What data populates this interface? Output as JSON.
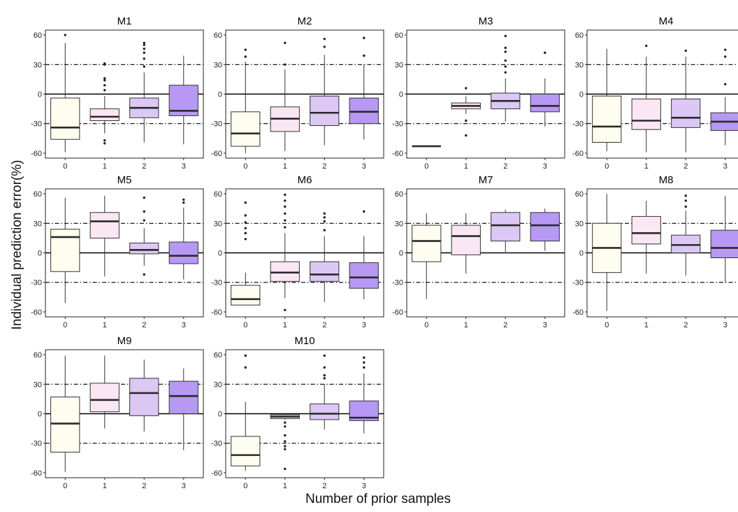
{
  "figure": {
    "ylabel": "Individual prediction error(%)",
    "xlabel": "Number of prior samples"
  },
  "chart_data": {
    "type": "box",
    "x_categories": [
      "0",
      "1",
      "2",
      "3"
    ],
    "y_ticks": [
      60,
      30,
      0,
      -30,
      -60
    ],
    "ylim": [
      -65,
      65
    ],
    "reference_lines": {
      "solid": [
        0
      ],
      "dashdot": [
        30,
        -30
      ]
    },
    "box_colors": [
      "#fdfdf0",
      "#fbe6f3",
      "#dcc7f5",
      "#b798f5"
    ],
    "panels": [
      {
        "title": "M1",
        "boxes": [
          {
            "x": "0",
            "whisker_low": -59,
            "q1": -46,
            "median": -34,
            "q3": -4,
            "whisker_high": 52,
            "outliers": [
              60
            ]
          },
          {
            "x": "1",
            "whisker_low": -40,
            "q1": -27,
            "median": -23,
            "q3": -15,
            "whisker_high": -2,
            "outliers": [
              4,
              9,
              14,
              16,
              30,
              31,
              -47,
              -50
            ]
          },
          {
            "x": "2",
            "whisker_low": -49,
            "q1": -24,
            "median": -14,
            "q3": -4,
            "whisker_high": 22,
            "outliers": [
              28,
              36,
              42,
              46,
              50,
              52
            ]
          },
          {
            "x": "3",
            "whisker_low": -51,
            "q1": -22,
            "median": -17,
            "q3": 9,
            "whisker_high": 39,
            "outliers": []
          }
        ]
      },
      {
        "title": "M2",
        "boxes": [
          {
            "x": "0",
            "whisker_low": -60,
            "q1": -53,
            "median": -40,
            "q3": -18,
            "whisker_high": 33,
            "outliers": [
              38,
              45
            ]
          },
          {
            "x": "1",
            "whisker_low": -58,
            "q1": -38,
            "median": -25,
            "q3": -13,
            "whisker_high": 25,
            "outliers": [
              30,
              52
            ]
          },
          {
            "x": "2",
            "whisker_low": -52,
            "q1": -32,
            "median": -19,
            "q3": -2,
            "whisker_high": 40,
            "outliers": [
              48,
              56
            ]
          },
          {
            "x": "3",
            "whisker_low": -46,
            "q1": -30,
            "median": -18,
            "q3": -4,
            "whisker_high": 30,
            "outliers": [
              39,
              57
            ]
          }
        ]
      },
      {
        "title": "M3",
        "boxes": [
          {
            "x": "0",
            "whisker_low": -53,
            "q1": -53,
            "median": -53,
            "q3": -53,
            "whisker_high": -53,
            "outliers": []
          },
          {
            "x": "1",
            "whisker_low": -20,
            "q1": -15,
            "median": -12,
            "q3": -9,
            "whisker_high": -2,
            "outliers": [
              6,
              -27,
              -42
            ]
          },
          {
            "x": "2",
            "whisker_low": -28,
            "q1": -15,
            "median": -7,
            "q3": 1,
            "whisker_high": 16,
            "outliers": [
              22,
              28,
              34,
              43,
              47,
              59
            ]
          },
          {
            "x": "3",
            "whisker_low": -33,
            "q1": -18,
            "median": -12,
            "q3": 0,
            "whisker_high": 16,
            "outliers": [
              42
            ]
          }
        ]
      },
      {
        "title": "M4",
        "boxes": [
          {
            "x": "0",
            "whisker_low": -58,
            "q1": -49,
            "median": -33,
            "q3": -2,
            "whisker_high": 46,
            "outliers": []
          },
          {
            "x": "1",
            "whisker_low": -59,
            "q1": -36,
            "median": -27,
            "q3": -5,
            "whisker_high": 38,
            "outliers": [
              49
            ]
          },
          {
            "x": "2",
            "whisker_low": -59,
            "q1": -34,
            "median": -24,
            "q3": -5,
            "whisker_high": 38,
            "outliers": [
              44
            ]
          },
          {
            "x": "3",
            "whisker_low": -52,
            "q1": -37,
            "median": -28,
            "q3": -19,
            "whisker_high": -3,
            "outliers": [
              10,
              38,
              45
            ]
          }
        ]
      },
      {
        "title": "M5",
        "boxes": [
          {
            "x": "0",
            "whisker_low": -51,
            "q1": -19,
            "median": 16,
            "q3": 24,
            "whisker_high": 56,
            "outliers": []
          },
          {
            "x": "1",
            "whisker_low": -24,
            "q1": 15,
            "median": 32,
            "q3": 41,
            "whisker_high": 58,
            "outliers": []
          },
          {
            "x": "2",
            "whisker_low": -13,
            "q1": -1,
            "median": 3,
            "q3": 10,
            "whisker_high": 25,
            "outliers": [
              33,
              42,
              56,
              -22
            ]
          },
          {
            "x": "3",
            "whisker_low": -27,
            "q1": -11,
            "median": -3,
            "q3": 11,
            "whisker_high": 46,
            "outliers": [
              51,
              54
            ]
          }
        ]
      },
      {
        "title": "M6",
        "boxes": [
          {
            "x": "0",
            "whisker_low": -53,
            "q1": -53,
            "median": -47,
            "q3": -33,
            "whisker_high": -20,
            "outliers": [
              14,
              20,
              25,
              31,
              38,
              51
            ]
          },
          {
            "x": "1",
            "whisker_low": -46,
            "q1": -29,
            "median": -20,
            "q3": -9,
            "whisker_high": 20,
            "outliers": [
              26,
              33,
              40,
              47,
              53,
              59,
              -58
            ]
          },
          {
            "x": "2",
            "whisker_low": -50,
            "q1": -29,
            "median": -22,
            "q3": -9,
            "whisker_high": 17,
            "outliers": [
              23,
              32,
              36,
              40
            ]
          },
          {
            "x": "3",
            "whisker_low": -47,
            "q1": -36,
            "median": -25,
            "q3": -10,
            "whisker_high": 17,
            "outliers": [
              42
            ]
          }
        ]
      },
      {
        "title": "M7",
        "boxes": [
          {
            "x": "0",
            "whisker_low": -47,
            "q1": -9,
            "median": 12,
            "q3": 28,
            "whisker_high": 40,
            "outliers": []
          },
          {
            "x": "1",
            "whisker_low": -21,
            "q1": -2,
            "median": 17,
            "q3": 28,
            "whisker_high": 40,
            "outliers": []
          },
          {
            "x": "2",
            "whisker_low": 1,
            "q1": 12,
            "median": 28,
            "q3": 41,
            "whisker_high": 44,
            "outliers": []
          },
          {
            "x": "3",
            "whisker_low": 2,
            "q1": 12,
            "median": 28,
            "q3": 41,
            "whisker_high": 45,
            "outliers": []
          }
        ]
      },
      {
        "title": "M8",
        "boxes": [
          {
            "x": "0",
            "whisker_low": -59,
            "q1": -20,
            "median": 5,
            "q3": 30,
            "whisker_high": 60,
            "outliers": []
          },
          {
            "x": "1",
            "whisker_low": -21,
            "q1": 9,
            "median": 20,
            "q3": 37,
            "whisker_high": 53,
            "outliers": []
          },
          {
            "x": "2",
            "whisker_low": -23,
            "q1": 0,
            "median": 8,
            "q3": 18,
            "whisker_high": 43,
            "outliers": [
              47,
              53,
              58
            ]
          },
          {
            "x": "3",
            "whisker_low": -30,
            "q1": -5,
            "median": 5,
            "q3": 23,
            "whisker_high": 58,
            "outliers": []
          }
        ]
      },
      {
        "title": "M9",
        "boxes": [
          {
            "x": "0",
            "whisker_low": -59,
            "q1": -39,
            "median": -10,
            "q3": 17,
            "whisker_high": 59,
            "outliers": []
          },
          {
            "x": "1",
            "whisker_low": -15,
            "q1": 2,
            "median": 14,
            "q3": 31,
            "whisker_high": 59,
            "outliers": []
          },
          {
            "x": "2",
            "whisker_low": -18,
            "q1": -2,
            "median": 21,
            "q3": 36,
            "whisker_high": 55,
            "outliers": []
          },
          {
            "x": "3",
            "whisker_low": -37,
            "q1": 0,
            "median": 18,
            "q3": 33,
            "whisker_high": 46,
            "outliers": []
          }
        ]
      },
      {
        "title": "M10",
        "boxes": [
          {
            "x": "0",
            "whisker_low": -58,
            "q1": -53,
            "median": -42,
            "q3": -23,
            "whisker_high": 12,
            "outliers": [
              47,
              59
            ]
          },
          {
            "x": "1",
            "whisker_low": -6,
            "q1": -5,
            "median": -3,
            "q3": -1,
            "whisker_high": 0,
            "outliers": [
              -9,
              -13,
              -22,
              -28,
              -33,
              -36,
              -56
            ]
          },
          {
            "x": "2",
            "whisker_low": -16,
            "q1": -6,
            "median": 0,
            "q3": 10,
            "whisker_high": 30,
            "outliers": [
              36,
              39,
              47,
              59
            ]
          },
          {
            "x": "3",
            "whisker_low": -20,
            "q1": -7,
            "median": -4,
            "q3": 13,
            "whisker_high": 41,
            "outliers": [
              47,
              52,
              57
            ]
          }
        ]
      }
    ]
  }
}
